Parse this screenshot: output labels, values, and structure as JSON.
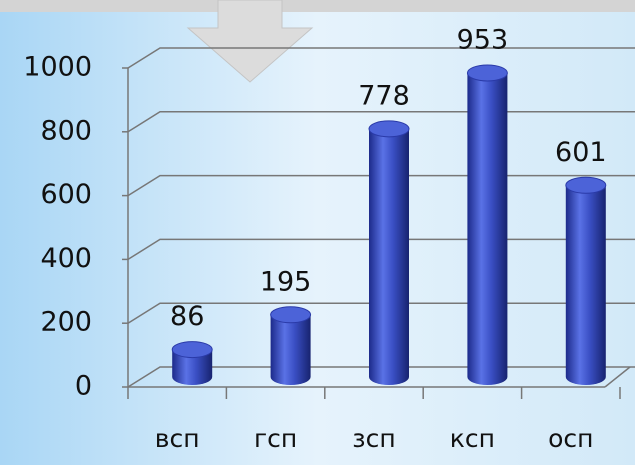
{
  "chart_data": {
    "type": "bar3d",
    "categories": [
      "всп",
      "гсп",
      "зсп",
      "ксп",
      "осп"
    ],
    "values": [
      86,
      195,
      778,
      953,
      601
    ],
    "color": "#3a4fc4",
    "ylim": [
      0,
      1000
    ],
    "yticks": [
      0,
      200,
      400,
      600,
      800,
      1000
    ],
    "grid": true
  }
}
